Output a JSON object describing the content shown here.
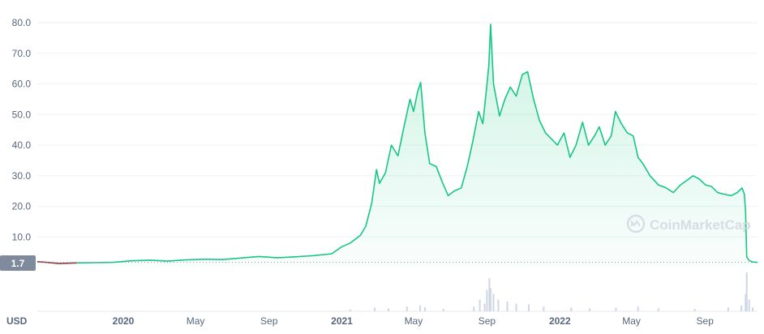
{
  "currency_label": "USD",
  "brand": {
    "name": "CoinMarketCap",
    "icon": "coinmarketcap-logo-icon"
  },
  "current_value_label": "1.7",
  "colors": {
    "line": "#16c784",
    "area_top": "#16c784",
    "grid": "#eff2f5",
    "axis_text": "#58667e",
    "badge_bg": "#808a9d",
    "volume": "#cfd6e4",
    "early_line": "#8a3b3b"
  },
  "chart_data": {
    "type": "area",
    "title": "",
    "xlabel": "",
    "ylabel": "",
    "ylim": [
      0,
      80
    ],
    "y_ticks": [
      "10.0",
      "20.0",
      "30.0",
      "40.0",
      "50.0",
      "60.0",
      "70.0",
      "80.0"
    ],
    "x_range": [
      "2019-08-10",
      "2022-11-28"
    ],
    "x_ticks": [
      {
        "label": "2020",
        "date": "2020-01-01",
        "bold": true
      },
      {
        "label": "May",
        "date": "2020-05-01",
        "bold": false
      },
      {
        "label": "Sep",
        "date": "2020-09-01",
        "bold": false
      },
      {
        "label": "2021",
        "date": "2021-01-01",
        "bold": true
      },
      {
        "label": "May",
        "date": "2021-05-01",
        "bold": false
      },
      {
        "label": "Sep",
        "date": "2021-09-01",
        "bold": false
      },
      {
        "label": "2022",
        "date": "2022-01-01",
        "bold": true
      },
      {
        "label": "May",
        "date": "2022-05-01",
        "bold": false
      },
      {
        "label": "Sep",
        "date": "2022-09-01",
        "bold": false
      }
    ],
    "grid": true,
    "series": [
      {
        "values": [
          [
            "2019-08-10",
            1.9
          ],
          [
            "2019-08-25",
            1.7
          ],
          [
            "2019-09-15",
            1.3
          ],
          [
            "2019-10-15",
            1.5
          ],
          [
            "2019-11-15",
            1.6
          ],
          [
            "2019-12-15",
            1.7
          ],
          [
            "2020-01-15",
            2.2
          ],
          [
            "2020-02-15",
            2.4
          ],
          [
            "2020-03-15",
            2.1
          ],
          [
            "2020-04-15",
            2.5
          ],
          [
            "2020-05-15",
            2.7
          ],
          [
            "2020-06-15",
            2.6
          ],
          [
            "2020-07-15",
            3.1
          ],
          [
            "2020-08-15",
            3.6
          ],
          [
            "2020-09-15",
            3.2
          ],
          [
            "2020-10-15",
            3.5
          ],
          [
            "2020-11-15",
            3.9
          ],
          [
            "2020-12-15",
            4.5
          ],
          [
            "2021-01-01",
            6.8
          ],
          [
            "2021-01-15",
            8.0
          ],
          [
            "2021-02-01",
            10.5
          ],
          [
            "2021-02-10",
            13.5
          ],
          [
            "2021-02-20",
            21.0
          ],
          [
            "2021-02-28",
            32.0
          ],
          [
            "2021-03-05",
            27.5
          ],
          [
            "2021-03-15",
            31.0
          ],
          [
            "2021-03-25",
            40.0
          ],
          [
            "2021-04-05",
            36.5
          ],
          [
            "2021-04-15",
            46.0
          ],
          [
            "2021-04-25",
            55.0
          ],
          [
            "2021-05-01",
            51.0
          ],
          [
            "2021-05-08",
            57.5
          ],
          [
            "2021-05-13",
            60.5
          ],
          [
            "2021-05-20",
            44.0
          ],
          [
            "2021-05-28",
            34.0
          ],
          [
            "2021-06-08",
            33.0
          ],
          [
            "2021-06-18",
            28.0
          ],
          [
            "2021-06-28",
            23.5
          ],
          [
            "2021-07-08",
            25.0
          ],
          [
            "2021-07-20",
            26.0
          ],
          [
            "2021-07-30",
            33.0
          ],
          [
            "2021-08-08",
            41.0
          ],
          [
            "2021-08-18",
            51.0
          ],
          [
            "2021-08-25",
            47.0
          ],
          [
            "2021-08-31",
            58.0
          ],
          [
            "2021-09-04",
            66.0
          ],
          [
            "2021-09-07",
            79.5
          ],
          [
            "2021-09-12",
            60.0
          ],
          [
            "2021-09-22",
            49.5
          ],
          [
            "2021-10-01",
            55.0
          ],
          [
            "2021-10-10",
            59.0
          ],
          [
            "2021-10-20",
            56.0
          ],
          [
            "2021-10-30",
            63.0
          ],
          [
            "2021-11-08",
            64.0
          ],
          [
            "2021-11-18",
            55.0
          ],
          [
            "2021-11-28",
            48.0
          ],
          [
            "2021-12-08",
            44.0
          ],
          [
            "2021-12-18",
            42.0
          ],
          [
            "2021-12-28",
            40.0
          ],
          [
            "2022-01-08",
            44.0
          ],
          [
            "2022-01-18",
            36.0
          ],
          [
            "2022-01-28",
            40.0
          ],
          [
            "2022-02-08",
            47.5
          ],
          [
            "2022-02-18",
            40.0
          ],
          [
            "2022-02-28",
            43.0
          ],
          [
            "2022-03-08",
            46.0
          ],
          [
            "2022-03-18",
            40.0
          ],
          [
            "2022-03-28",
            43.0
          ],
          [
            "2022-04-04",
            51.0
          ],
          [
            "2022-04-14",
            47.0
          ],
          [
            "2022-04-24",
            44.0
          ],
          [
            "2022-05-04",
            43.0
          ],
          [
            "2022-05-12",
            36.0
          ],
          [
            "2022-05-20",
            34.0
          ],
          [
            "2022-06-01",
            30.0
          ],
          [
            "2022-06-15",
            27.0
          ],
          [
            "2022-06-28",
            26.0
          ],
          [
            "2022-07-10",
            24.5
          ],
          [
            "2022-07-22",
            27.0
          ],
          [
            "2022-08-02",
            28.5
          ],
          [
            "2022-08-12",
            30.0
          ],
          [
            "2022-08-22",
            29.0
          ],
          [
            "2022-09-02",
            27.0
          ],
          [
            "2022-09-12",
            26.5
          ],
          [
            "2022-09-22",
            24.5
          ],
          [
            "2022-10-02",
            24.0
          ],
          [
            "2022-10-15",
            23.5
          ],
          [
            "2022-10-25",
            24.5
          ],
          [
            "2022-11-02",
            26.0
          ],
          [
            "2022-11-06",
            24.0
          ],
          [
            "2022-11-08",
            18.0
          ],
          [
            "2022-11-10",
            3.5
          ],
          [
            "2022-11-14",
            2.3
          ],
          [
            "2022-11-20",
            1.8
          ],
          [
            "2022-11-28",
            1.7
          ]
        ]
      }
    ],
    "volume": [
      [
        "2021-01-15",
        0.05
      ],
      [
        "2021-02-25",
        0.1
      ],
      [
        "2021-03-20",
        0.08
      ],
      [
        "2021-04-20",
        0.12
      ],
      [
        "2021-05-12",
        0.15
      ],
      [
        "2021-05-20",
        0.1
      ],
      [
        "2021-06-20",
        0.06
      ],
      [
        "2021-08-10",
        0.12
      ],
      [
        "2021-08-20",
        0.3
      ],
      [
        "2021-08-28",
        0.2
      ],
      [
        "2021-09-01",
        0.55
      ],
      [
        "2021-09-05",
        0.85
      ],
      [
        "2021-09-07",
        0.6
      ],
      [
        "2021-09-12",
        0.45
      ],
      [
        "2021-09-20",
        0.3
      ],
      [
        "2021-10-05",
        0.25
      ],
      [
        "2021-10-20",
        0.2
      ],
      [
        "2021-11-10",
        0.18
      ],
      [
        "2021-12-05",
        0.12
      ],
      [
        "2022-01-20",
        0.1
      ],
      [
        "2022-02-20",
        0.08
      ],
      [
        "2022-04-05",
        0.1
      ],
      [
        "2022-05-12",
        0.12
      ],
      [
        "2022-06-15",
        0.08
      ],
      [
        "2022-08-15",
        0.06
      ],
      [
        "2022-10-10",
        0.1
      ],
      [
        "2022-11-01",
        0.15
      ],
      [
        "2022-11-08",
        0.45
      ],
      [
        "2022-11-10",
        1.0
      ],
      [
        "2022-11-14",
        0.3
      ],
      [
        "2022-11-20",
        0.1
      ]
    ]
  }
}
